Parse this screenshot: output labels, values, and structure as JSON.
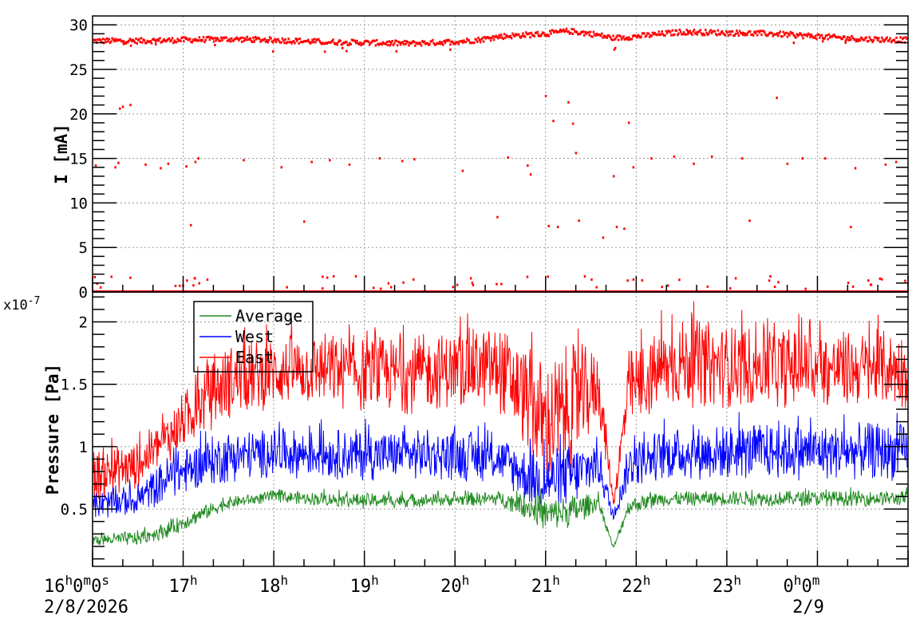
{
  "chart_data": [
    {
      "type": "scatter",
      "ylabel": "I [mA]",
      "ylim": [
        0,
        31
      ],
      "yticks": [
        "0",
        "5",
        "10",
        "15",
        "20",
        "25",
        "30"
      ],
      "grid": true,
      "series": [
        {
          "color": "#ff0000",
          "x": [
            "16:00",
            "16:30",
            "17:00",
            "17:30",
            "18:00",
            "18:30",
            "19:00",
            "19:30",
            "20:00",
            "20:15",
            "20:30",
            "21:00",
            "21:15",
            "21:30",
            "21:45",
            "22:00",
            "22:30",
            "23:00",
            "23:30",
            "00:00",
            "00:30",
            "01:00"
          ],
          "y": [
            28.2,
            28.2,
            28.3,
            28.4,
            28.3,
            28.1,
            28.0,
            27.9,
            28.1,
            28.3,
            28.7,
            29.0,
            29.3,
            29.0,
            28.5,
            28.7,
            29.2,
            29.1,
            29.0,
            28.7,
            28.4,
            28.3
          ],
          "outliers": [
            [
              "16:02",
              14.2
            ],
            [
              "16:15",
              14.0
            ],
            [
              "16:17",
              14.5
            ],
            [
              "16:20",
              20.8
            ],
            [
              "16:25",
              21.0
            ],
            [
              "16:18",
              20.6
            ],
            [
              "16:35",
              14.3
            ],
            [
              "16:45",
              13.9
            ],
            [
              "16:50",
              14.4
            ],
            [
              "17:02",
              14.1
            ],
            [
              "17:05",
              7.5
            ],
            [
              "17:08",
              14.6
            ],
            [
              "17:10",
              15.0
            ],
            [
              "17:40",
              14.8
            ],
            [
              "18:05",
              14.0
            ],
            [
              "18:20",
              7.9
            ],
            [
              "18:25",
              14.6
            ],
            [
              "18:37",
              14.8
            ],
            [
              "18:50",
              14.3
            ],
            [
              "19:10",
              15.0
            ],
            [
              "19:25",
              14.7
            ],
            [
              "19:33",
              14.9
            ],
            [
              "20:05",
              13.6
            ],
            [
              "20:28",
              8.4
            ],
            [
              "20:35",
              15.1
            ],
            [
              "20:48",
              14.2
            ],
            [
              "20:50",
              13.2
            ],
            [
              "21:00",
              22.0
            ],
            [
              "21:02",
              7.4
            ],
            [
              "21:05",
              19.2
            ],
            [
              "21:08",
              7.3
            ],
            [
              "21:15",
              21.3
            ],
            [
              "21:18",
              18.9
            ],
            [
              "21:20",
              15.6
            ],
            [
              "21:22",
              8.0
            ],
            [
              "21:38",
              6.1
            ],
            [
              "21:45",
              13.0
            ],
            [
              "21:47",
              7.3
            ],
            [
              "21:52",
              7.1
            ],
            [
              "21:55",
              19.0
            ],
            [
              "21:58",
              14.0
            ],
            [
              "22:10",
              15.0
            ],
            [
              "22:25",
              15.2
            ],
            [
              "22:38",
              14.4
            ],
            [
              "22:50",
              15.2
            ],
            [
              "23:10",
              15.0
            ],
            [
              "23:15",
              8.0
            ],
            [
              "23:33",
              21.8
            ],
            [
              "23:40",
              14.4
            ],
            [
              "23:50",
              15.0
            ],
            [
              "00:05",
              15.0
            ],
            [
              "00:25",
              13.9
            ],
            [
              "00:22",
              7.3
            ],
            [
              "00:45",
              14.3
            ],
            [
              "00:52",
              14.6
            ]
          ],
          "zero_level": 0
        }
      ]
    },
    {
      "type": "line",
      "ylabel": "Pressure [Pa]",
      "yexponent": "x10",
      "yexponent_power": "-7",
      "ylim": [
        0.04,
        2.24
      ],
      "yticks": [
        "0.5",
        "1",
        "1.5",
        "2"
      ],
      "xlabels": [
        {
          "main": "16",
          "sup": "h",
          "main2": "0",
          "sup2": "m",
          "main3": "0",
          "sup3": "s",
          "date": "2/8/2026"
        },
        {
          "main": "17",
          "sup": "h"
        },
        {
          "main": "18",
          "sup": "h"
        },
        {
          "main": "19",
          "sup": "h"
        },
        {
          "main": "20",
          "sup": "h"
        },
        {
          "main": "21",
          "sup": "h"
        },
        {
          "main": "22",
          "sup": "h"
        },
        {
          "main": "23",
          "sup": "h"
        },
        {
          "main": "0",
          "sup": "h",
          "main2": "0",
          "sup2": "m",
          "date": "2/9"
        }
      ],
      "xrange": [
        "16:00",
        "01:00"
      ],
      "grid": true,
      "legend": {
        "placement": "top-left",
        "entries": [
          "Average",
          "West",
          "East"
        ]
      },
      "series": [
        {
          "name": "East",
          "color": "#ff0000",
          "x": [
            "16:00",
            "16:30",
            "16:50",
            "17:10",
            "17:30",
            "18:00",
            "18:30",
            "19:00",
            "19:30",
            "20:00",
            "20:30",
            "20:50",
            "21:00",
            "21:20",
            "21:35",
            "21:45",
            "21:55",
            "22:15",
            "22:30",
            "23:00",
            "23:30",
            "00:00",
            "00:30",
            "01:00"
          ],
          "low": [
            0.55,
            0.65,
            0.85,
            1.05,
            1.2,
            1.3,
            1.3,
            1.25,
            1.25,
            1.3,
            1.25,
            0.9,
            0.6,
            0.8,
            1.2,
            0.5,
            1.1,
            1.25,
            1.3,
            1.3,
            1.3,
            1.3,
            1.3,
            1.3
          ],
          "high": [
            1.0,
            1.05,
            1.3,
            1.6,
            1.85,
            1.9,
            1.95,
            1.9,
            1.9,
            1.95,
            2.0,
            1.8,
            1.75,
            1.85,
            1.8,
            0.6,
            1.8,
            1.95,
            2.05,
            2.0,
            2.0,
            1.95,
            1.95,
            1.95
          ]
        },
        {
          "name": "West",
          "color": "#0000ff",
          "x": [
            "16:00",
            "16:30",
            "16:50",
            "17:10",
            "17:30",
            "18:00",
            "19:00",
            "20:00",
            "20:30",
            "20:50",
            "21:00",
            "21:20",
            "21:35",
            "21:45",
            "21:55",
            "22:15",
            "23:00",
            "00:00",
            "01:00"
          ],
          "low": [
            0.4,
            0.45,
            0.55,
            0.65,
            0.7,
            0.75,
            0.72,
            0.72,
            0.7,
            0.5,
            0.45,
            0.5,
            0.65,
            0.4,
            0.65,
            0.72,
            0.72,
            0.72,
            0.72
          ],
          "high": [
            0.65,
            0.7,
            0.95,
            1.05,
            1.15,
            1.15,
            1.15,
            1.15,
            1.1,
            1.0,
            1.0,
            1.05,
            1.1,
            0.46,
            1.05,
            1.15,
            1.2,
            1.2,
            1.2
          ]
        },
        {
          "name": "Average",
          "color": "#228b22",
          "x": [
            "16:00",
            "16:30",
            "16:50",
            "17:10",
            "17:30",
            "18:00",
            "19:00",
            "20:00",
            "20:30",
            "20:50",
            "21:00",
            "21:20",
            "21:35",
            "21:45",
            "21:55",
            "22:15",
            "23:00",
            "00:00",
            "01:00"
          ],
          "low": [
            0.2,
            0.2,
            0.27,
            0.38,
            0.5,
            0.55,
            0.5,
            0.52,
            0.52,
            0.4,
            0.3,
            0.35,
            0.5,
            0.17,
            0.45,
            0.52,
            0.52,
            0.52,
            0.52
          ],
          "high": [
            0.3,
            0.33,
            0.4,
            0.52,
            0.6,
            0.65,
            0.63,
            0.63,
            0.65,
            0.63,
            0.6,
            0.63,
            0.62,
            0.2,
            0.6,
            0.64,
            0.65,
            0.65,
            0.65
          ]
        }
      ]
    }
  ]
}
